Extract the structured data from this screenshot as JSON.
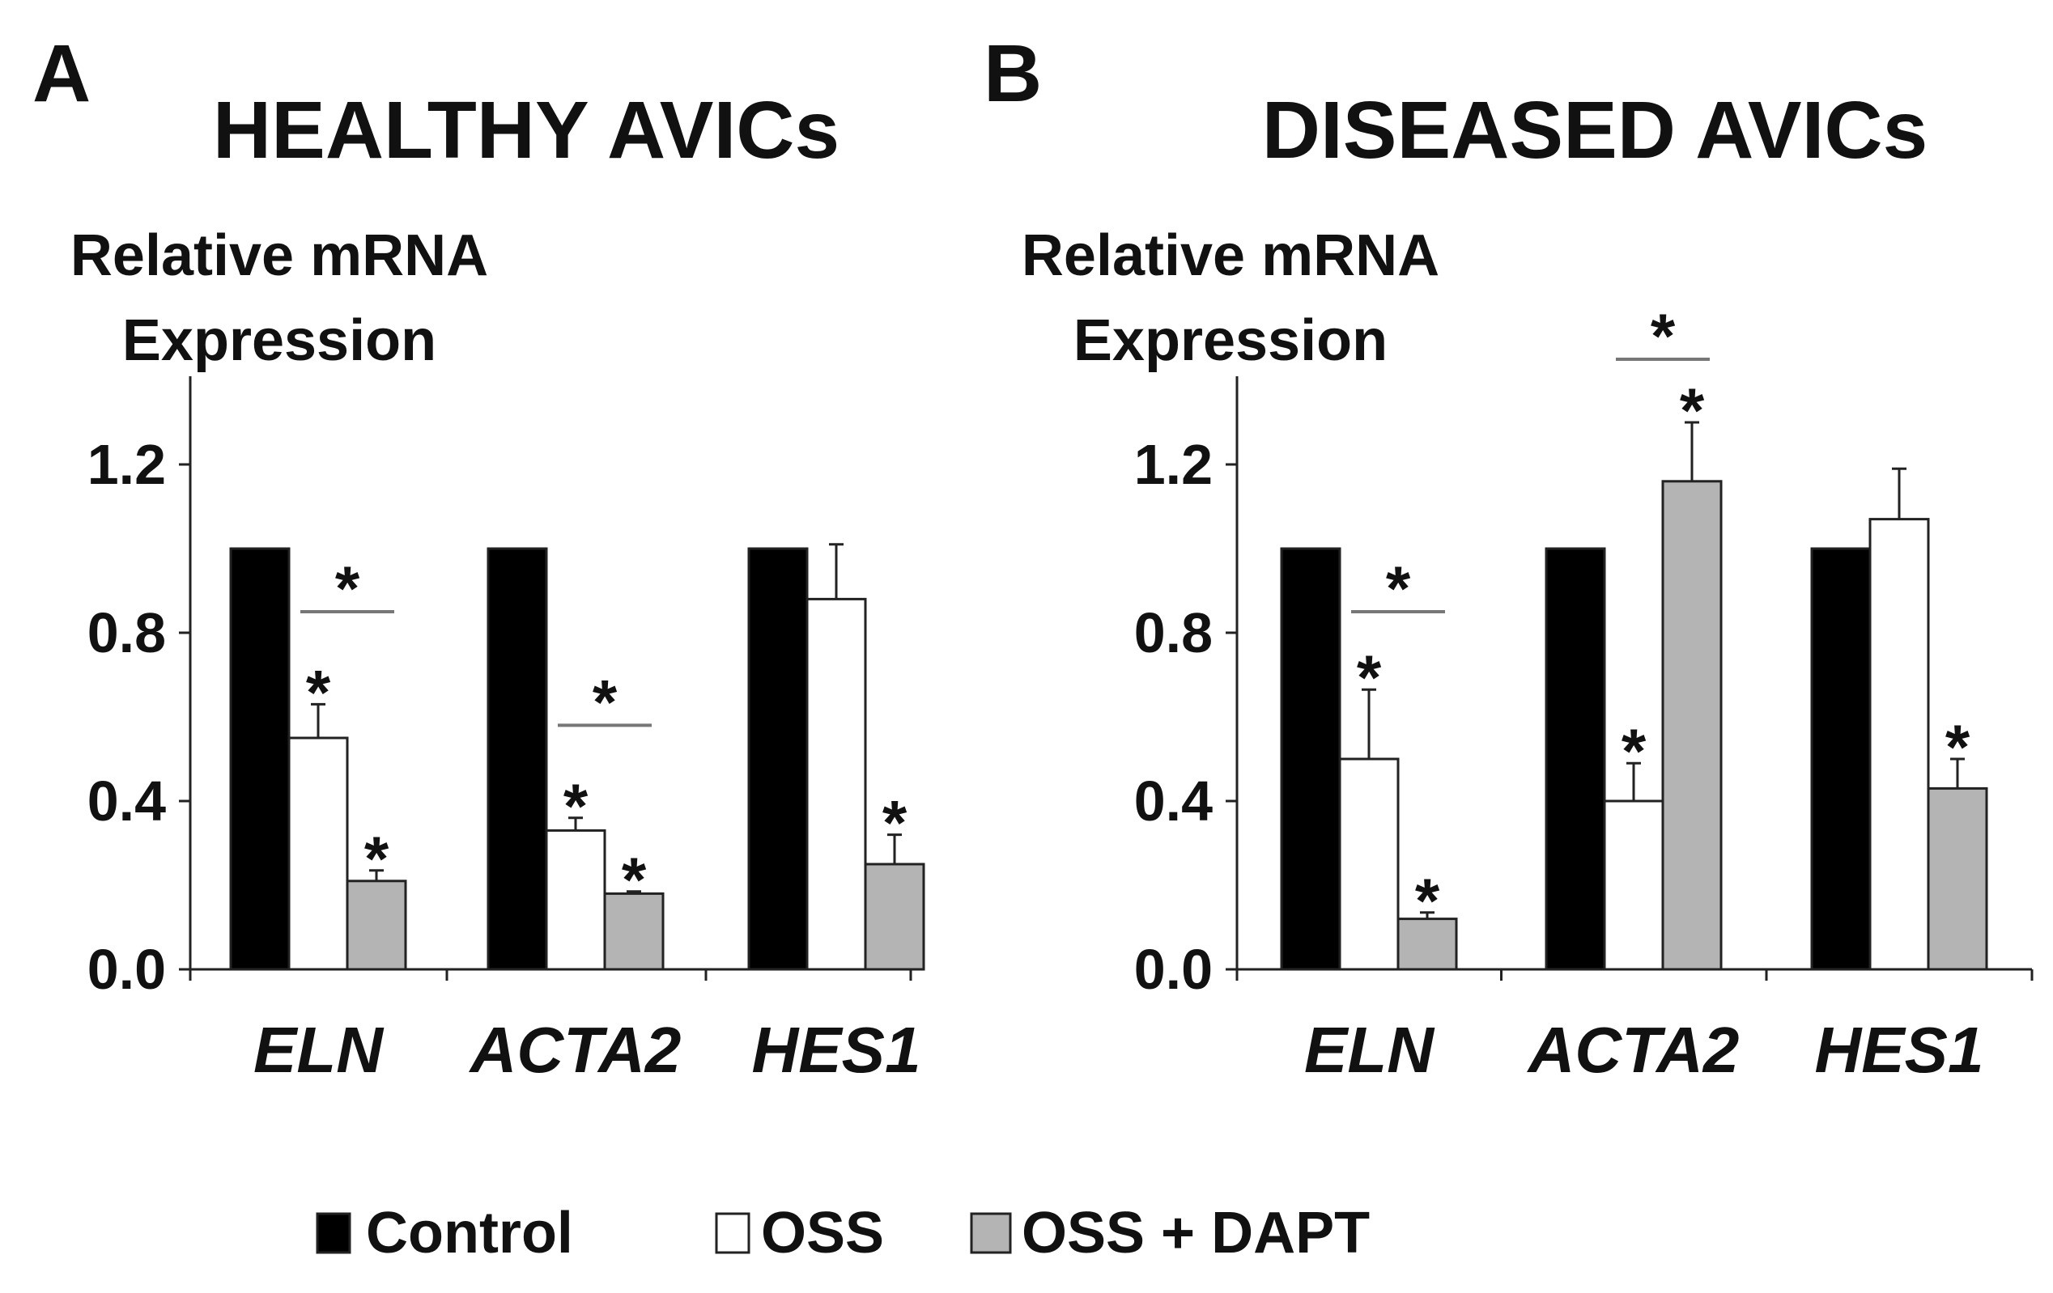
{
  "legend": {
    "items": [
      {
        "label": "Control",
        "color": "#000000"
      },
      {
        "label": "OSS",
        "color": "#ffffff"
      },
      {
        "label": "OSS + DAPT",
        "color": "#b4b4b4"
      }
    ]
  },
  "chart_data": [
    {
      "type": "bar",
      "panel_letter": "A",
      "title": "HEALTHY AVICs",
      "ylabel_line1": "Relative mRNA",
      "ylabel_line2": "Expression",
      "ylim": [
        0,
        1.4
      ],
      "yticks": [
        "0.0",
        "0.4",
        "0.8",
        "1.2"
      ],
      "categories": [
        "ELN",
        "ACTA2",
        "HES1"
      ],
      "series": [
        {
          "name": "Control",
          "values": [
            1.0,
            1.0,
            1.0
          ],
          "errors": [
            0,
            0,
            0
          ],
          "stars": [
            false,
            false,
            false
          ]
        },
        {
          "name": "OSS",
          "values": [
            0.55,
            0.33,
            0.88
          ],
          "errors": [
            0.08,
            0.03,
            0.13
          ],
          "stars": [
            true,
            true,
            false
          ]
        },
        {
          "name": "OSS + DAPT",
          "values": [
            0.21,
            0.18,
            0.25
          ],
          "errors": [
            0.025,
            0.005,
            0.07
          ],
          "stars": [
            true,
            true,
            true
          ]
        }
      ],
      "brackets": [
        {
          "category": 0,
          "from": 1,
          "to": 2,
          "label": "*",
          "level": 0.85
        },
        {
          "category": 1,
          "from": 1,
          "to": 2,
          "label": "*",
          "level": 0.58
        }
      ]
    },
    {
      "type": "bar",
      "panel_letter": "B",
      "title": "DISEASED AVICs",
      "ylabel_line1": "Relative mRNA",
      "ylabel_line2": "Expression",
      "ylim": [
        0,
        1.4
      ],
      "yticks": [
        "0.0",
        "0.4",
        "0.8",
        "1.2"
      ],
      "categories": [
        "ELN",
        "ACTA2",
        "HES1"
      ],
      "series": [
        {
          "name": "Control",
          "values": [
            1.0,
            1.0,
            1.0
          ],
          "errors": [
            0,
            0,
            0
          ],
          "stars": [
            false,
            false,
            false
          ]
        },
        {
          "name": "OSS",
          "values": [
            0.5,
            0.4,
            1.07
          ],
          "errors": [
            0.165,
            0.09,
            0.12
          ],
          "stars": [
            true,
            true,
            false
          ]
        },
        {
          "name": "OSS + DAPT",
          "values": [
            0.12,
            1.16,
            0.43
          ],
          "errors": [
            0.015,
            0.14,
            0.07
          ],
          "stars": [
            true,
            true,
            true
          ]
        }
      ],
      "brackets": [
        {
          "category": 0,
          "from": 1,
          "to": 2,
          "label": "*",
          "level": 0.85
        },
        {
          "category": 1,
          "from": 1,
          "to": 2,
          "label": "*",
          "level": 1.45
        }
      ]
    }
  ]
}
